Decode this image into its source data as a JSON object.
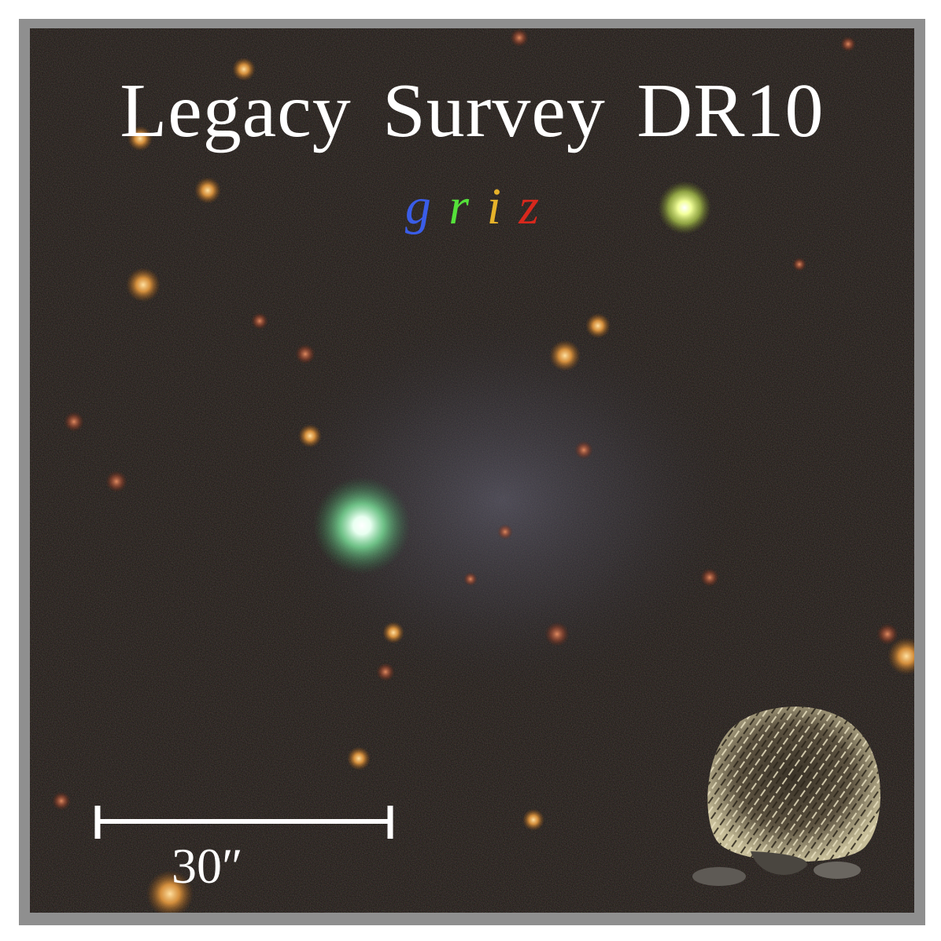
{
  "title": "Legacy Survey DR10",
  "bands": [
    {
      "label": "g",
      "color": "#3a5de8"
    },
    {
      "label": "r",
      "color": "#55e03a"
    },
    {
      "label": "i",
      "color": "#e6b22a"
    },
    {
      "label": "z",
      "color": "#d8281d"
    }
  ],
  "scale_bar": {
    "label": "30″"
  },
  "mascot": {
    "icon": "hedgehog-icon"
  },
  "colors": {
    "sky": "#181411",
    "frame": "#8f8f8f",
    "text": "#ffffff"
  }
}
